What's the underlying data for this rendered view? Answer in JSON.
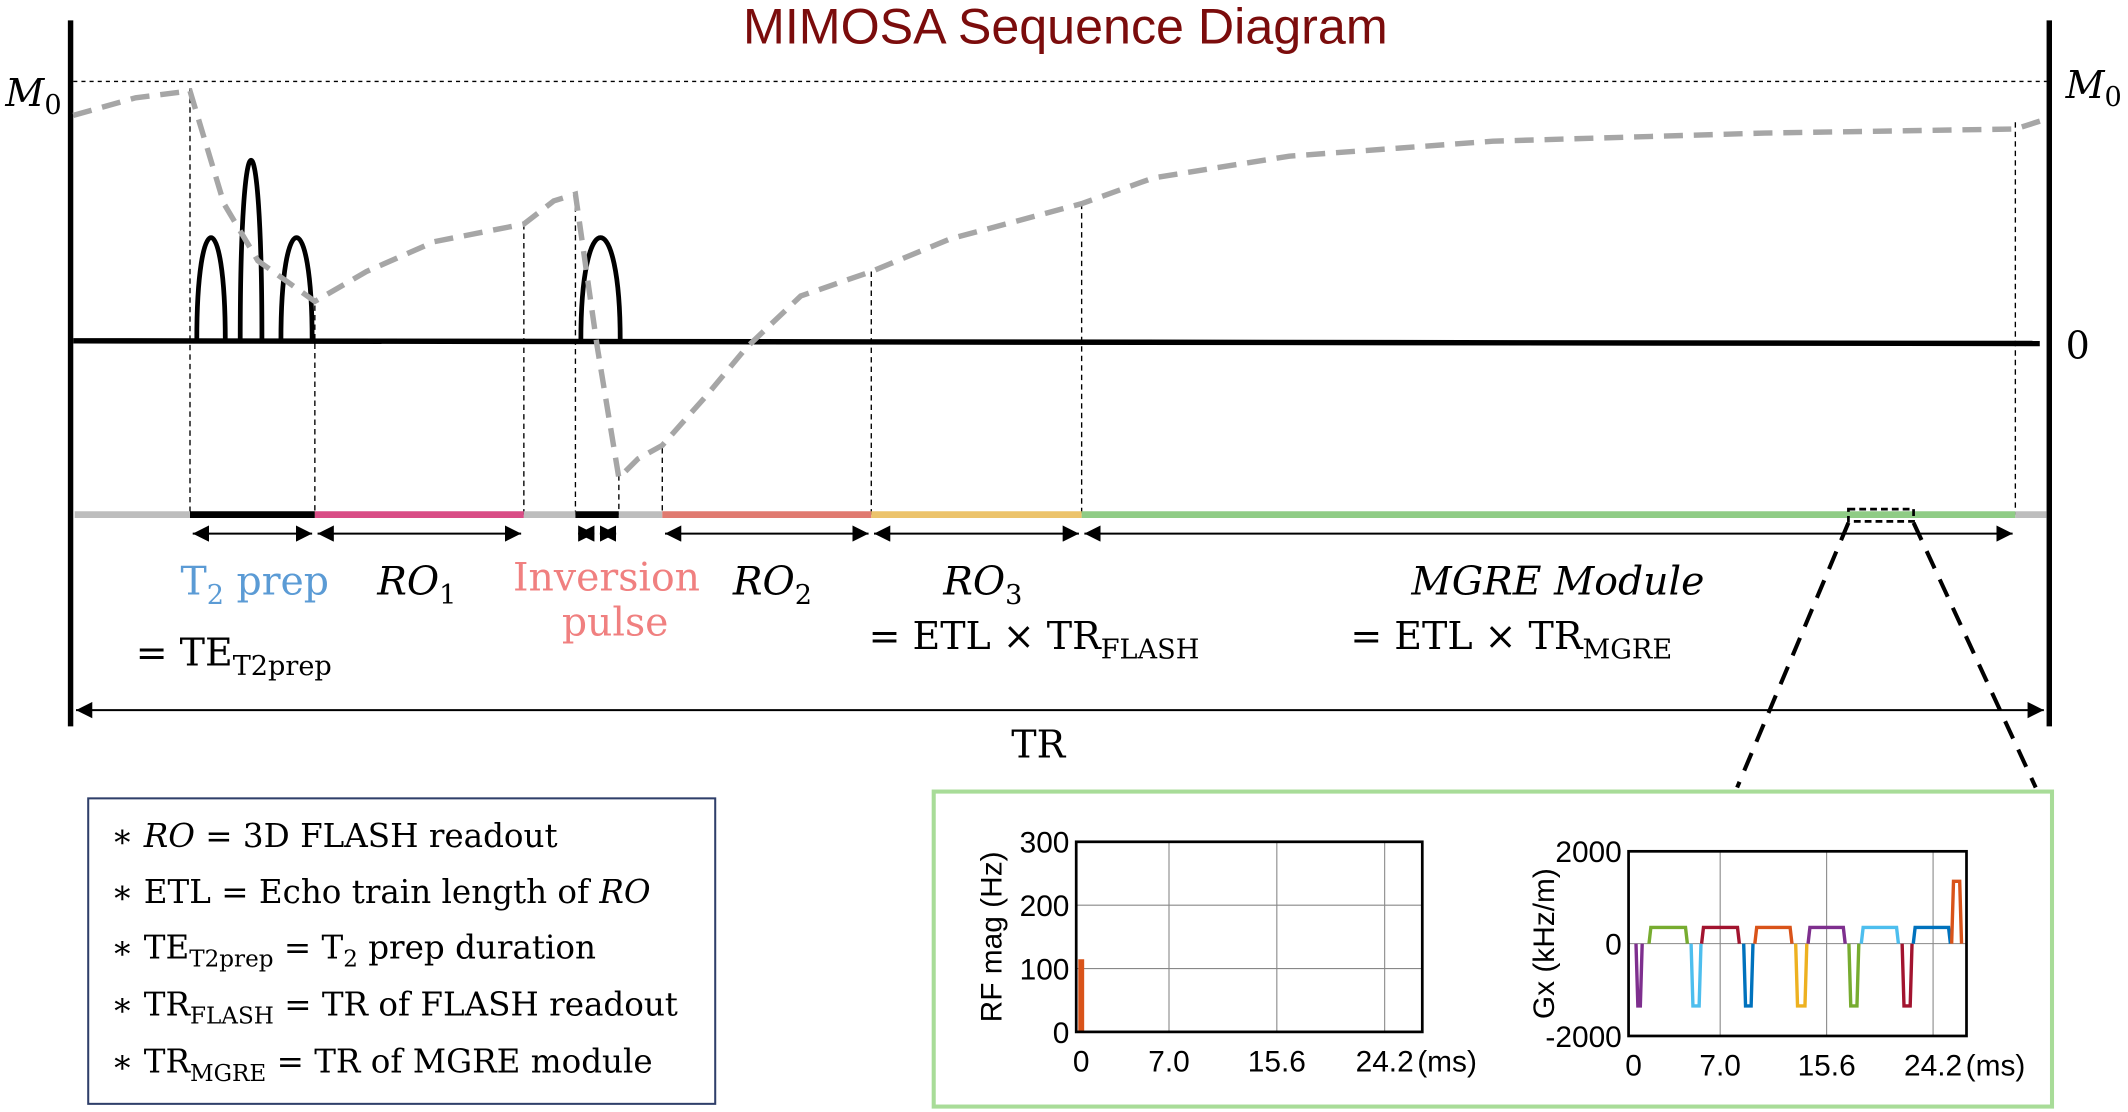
{
  "title": "MIMOSA Sequence Diagram",
  "colors": {
    "title": "#7b0c0c",
    "t2prep": "#5b9bd5",
    "inversion": "#f08080",
    "ro1": "#d94c85",
    "ro2": "#e07a70",
    "ro3": "#ecc36b",
    "mgre": "#8fcc85",
    "magnetization": "#a6a6a6",
    "legend_border": "#2f3f6a",
    "inset_border": "#a8dc98"
  },
  "axis": {
    "m0_left": {
      "main": "M",
      "sub": "0"
    },
    "m0_right": {
      "main": "M",
      "sub": "0"
    },
    "zero": "0",
    "tr": "TR"
  },
  "labels": {
    "t2prep": {
      "main": "T",
      "sub": "2",
      "rest": " prep"
    },
    "t2prep_eq": {
      "main": "= TE",
      "sub": "T2prep"
    },
    "ro1": {
      "main": "RO",
      "sub": "1"
    },
    "inversion_line1": "Inversion",
    "inversion_line2": "pulse",
    "ro2": {
      "main": "RO",
      "sub": "2"
    },
    "ro3": {
      "main": "RO",
      "sub": "3"
    },
    "ro3_eq": {
      "main": "= ETL × TR",
      "sub": "FLASH"
    },
    "mgre": "MGRE Module",
    "mgre_eq": {
      "main": "= ETL × TR",
      "sub": "MGRE"
    }
  },
  "legend": [
    {
      "bullet": "∗ ",
      "a": "RO",
      "a_italic": true,
      "sub": "",
      "b": " = 3D FLASH readout"
    },
    {
      "bullet": "∗ ",
      "a": "ETL = Echo train length of ",
      "a_italic": false,
      "sub": "",
      "b": "RO",
      "b_italic": true
    },
    {
      "bullet": "∗ ",
      "a": "TE",
      "a_italic": false,
      "sub": "T2prep",
      "b": " = T",
      "sub2": "2",
      "c": " prep duration"
    },
    {
      "bullet": "∗ ",
      "a": "TR",
      "a_italic": false,
      "sub": "FLASH",
      "b": " = TR of FLASH readout"
    },
    {
      "bullet": "∗ ",
      "a": "TR",
      "a_italic": false,
      "sub": "MGRE",
      "b": " = TR of MGRE module"
    }
  ],
  "chart_data": [
    {
      "type": "line",
      "ylabel": "RF mag (Hz)",
      "xunit": "(ms)",
      "xticks": [
        "0",
        "7.0",
        "15.6",
        "24.2"
      ],
      "xtick_values": [
        0,
        7.0,
        15.6,
        24.2
      ],
      "yticks": [
        "0",
        "100",
        "200",
        "300"
      ],
      "ytick_values": [
        0,
        100,
        200,
        300
      ],
      "xlim": [
        -0.4,
        27.2
      ],
      "ylim": [
        0,
        300
      ],
      "grid": true,
      "series": [
        {
          "color": "#D95319",
          "points": [
            [
              -0.1,
              0
            ],
            [
              -0.1,
              112
            ],
            [
              0.1,
              112
            ],
            [
              0.1,
              0
            ]
          ]
        }
      ]
    },
    {
      "type": "line",
      "ylabel": "Gx (kHz/m)",
      "xunit": "(ms)",
      "xticks": [
        "0",
        "7.0",
        "15.6",
        "24.2"
      ],
      "xtick_values": [
        0,
        7.0,
        15.6,
        24.2
      ],
      "yticks": [
        "-2000",
        "0",
        "2000"
      ],
      "ytick_values": [
        -2000,
        0,
        2000
      ],
      "xlim": [
        -0.4,
        26.9
      ],
      "ylim": [
        -2000,
        2000
      ],
      "grid": true,
      "lobes": [
        {
          "start": 0.2,
          "end": 0.7,
          "amp": -1350,
          "color": "#7E2F8E"
        },
        {
          "start": 1.25,
          "end": 4.35,
          "amp": 350,
          "color": "#77AC30"
        },
        {
          "start": 4.65,
          "end": 5.45,
          "amp": -1350,
          "color": "#4DBEEE"
        },
        {
          "start": 5.5,
          "end": 8.55,
          "amp": 350,
          "color": "#A2142F"
        },
        {
          "start": 8.9,
          "end": 9.65,
          "amp": -1350,
          "color": "#0072BD"
        },
        {
          "start": 9.8,
          "end": 12.8,
          "amp": 350,
          "color": "#D95319"
        },
        {
          "start": 13.1,
          "end": 14.0,
          "amp": -1350,
          "color": "#EDB120"
        },
        {
          "start": 14.1,
          "end": 17.1,
          "amp": 350,
          "color": "#7E2F8E"
        },
        {
          "start": 17.4,
          "end": 18.2,
          "amp": -1350,
          "color": "#77AC30"
        },
        {
          "start": 18.4,
          "end": 21.4,
          "amp": 350,
          "color": "#4DBEEE"
        },
        {
          "start": 21.7,
          "end": 22.5,
          "amp": -1350,
          "color": "#A2142F"
        },
        {
          "start": 22.6,
          "end": 25.6,
          "amp": 350,
          "color": "#0072BD"
        },
        {
          "start": 25.7,
          "end": 26.5,
          "amp": 1350,
          "color": "#D95319"
        }
      ]
    }
  ]
}
